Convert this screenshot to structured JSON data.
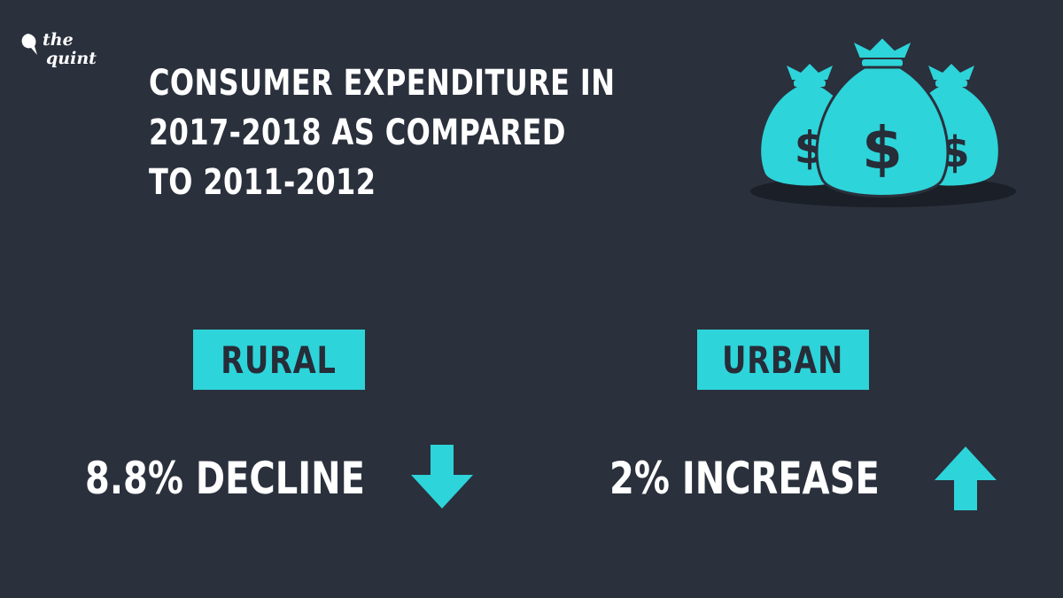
{
  "brand": {
    "line1": "the",
    "line2": "quint",
    "logo_icon": "quint-quill-icon"
  },
  "title": {
    "lines": [
      "CONSUMER EXPENDITURE IN",
      "2017-2018 AS COMPARED",
      "TO 2011-2012"
    ]
  },
  "illustration": {
    "icon": "money-bags-icon"
  },
  "colors": {
    "background": "#2a303c",
    "accent": "#2dd4d9",
    "text": "#ffffff",
    "dark_text": "#262c38"
  },
  "rural": {
    "label": "RURAL",
    "stat": "8.8% DECLINE",
    "direction_icon": "arrow-down-icon"
  },
  "urban": {
    "label": "URBAN",
    "stat": "2% INCREASE",
    "direction_icon": "arrow-up-icon"
  }
}
